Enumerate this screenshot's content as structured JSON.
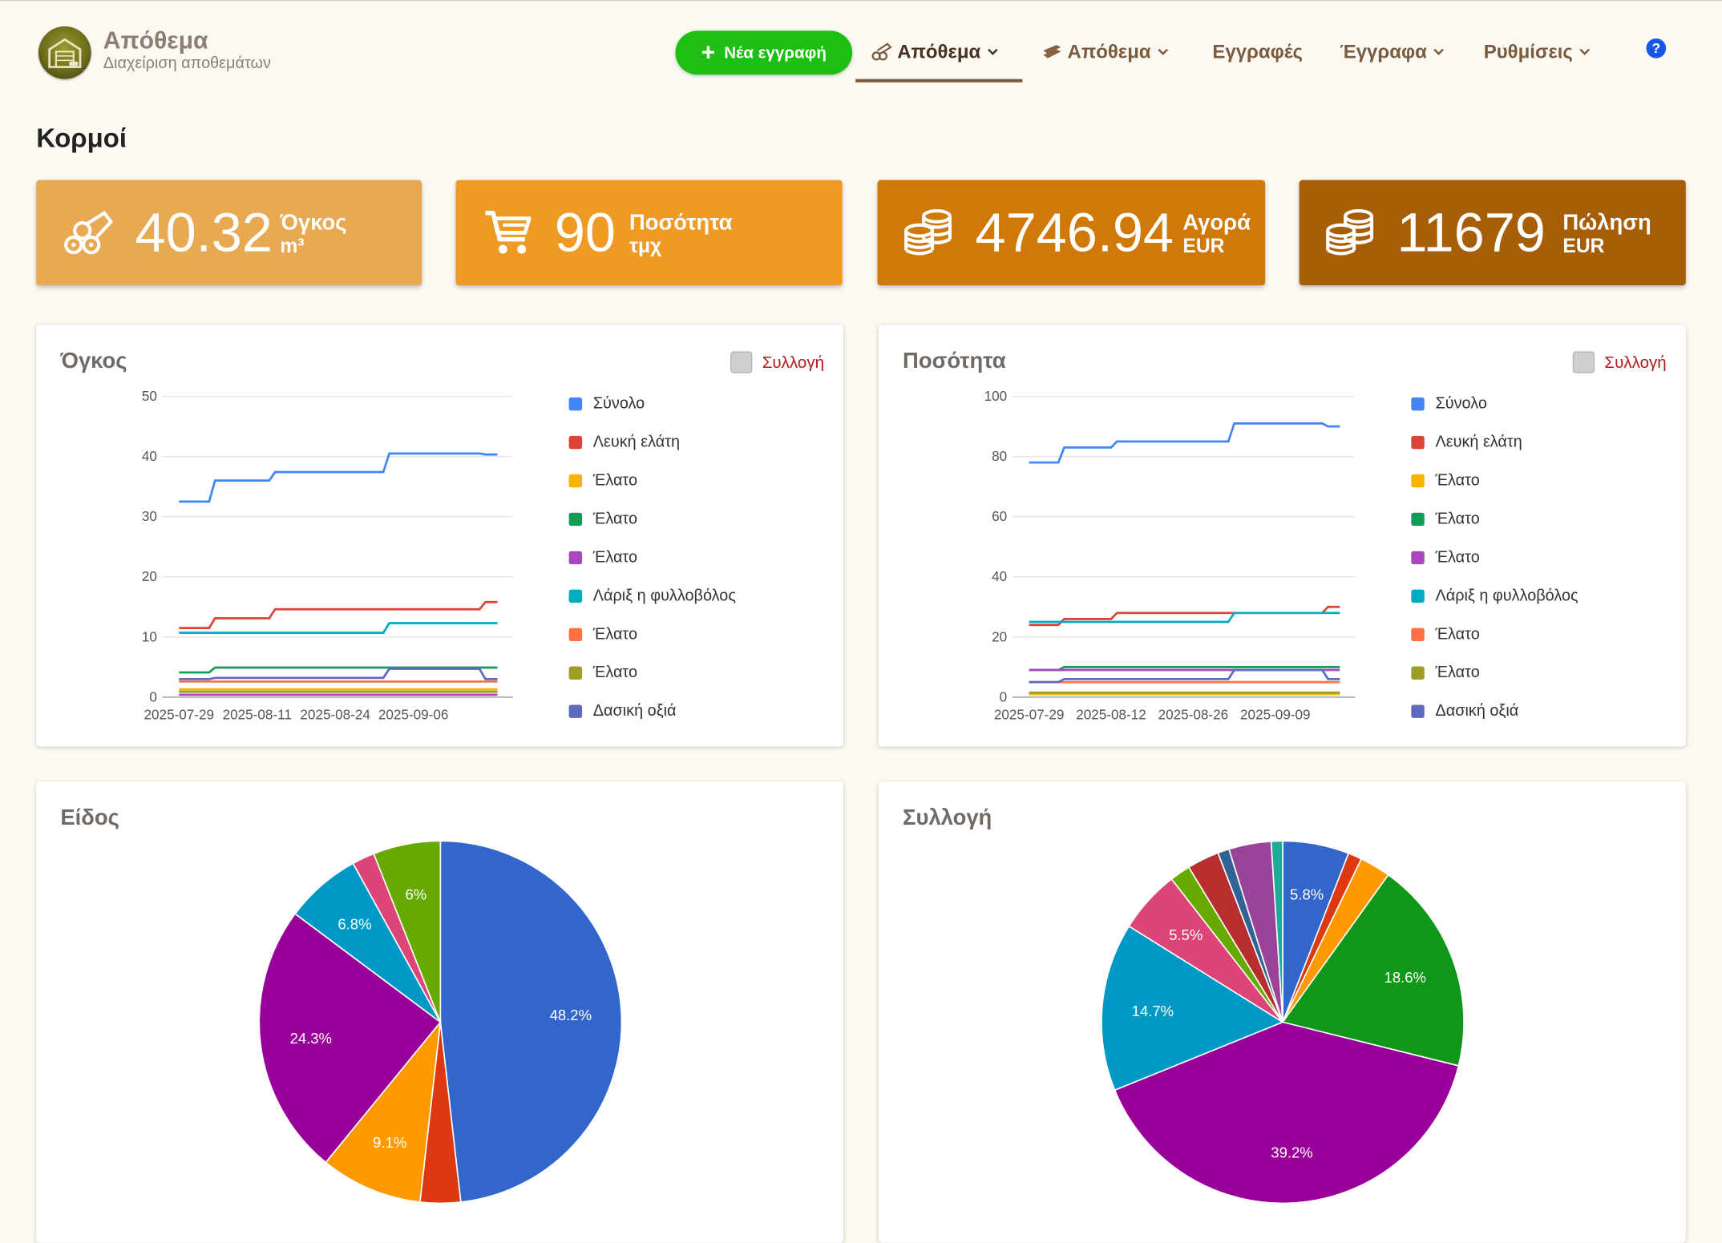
{
  "header": {
    "app_title": "Απόθεμα",
    "app_subtitle": "Διαχείριση αποθεμάτων",
    "new_entry_label": "Νέα εγγραφή",
    "nav": [
      "Απόθεμα",
      "Απόθεμα",
      "Εγγραφές",
      "Έγγραφα",
      "Ρυθμίσεις"
    ],
    "help_label": "?"
  },
  "page_title": "Κορμοί",
  "stats": [
    {
      "value": "40.32",
      "label": "Όγκος",
      "unit": "m³",
      "color": "#e8a952",
      "icon": "logs-icon"
    },
    {
      "value": "90",
      "label": "Ποσότητα",
      "unit": "τμχ",
      "color": "#ef9a25",
      "icon": "cart-icon"
    },
    {
      "value": "4746.94",
      "label": "Αγορά",
      "unit": "EUR",
      "color": "#d07808",
      "icon": "coins-icon"
    },
    {
      "value": "11679",
      "label": "Πώληση",
      "unit": "EUR",
      "color": "#a65f07",
      "icon": "coins-icon"
    }
  ],
  "collection_label": "Συλλογή",
  "legend_items": [
    "Σύνολο",
    "Λευκή ελάτη",
    "Έλατο",
    "Έλατο",
    "Έλατο",
    "Λάριξ η φυλλοβόλος",
    "Έλατο",
    "Έλατο",
    "Δασική οξιά"
  ],
  "legend_colors": [
    "#4285f4",
    "#db4437",
    "#f4b400",
    "#0f9d58",
    "#ab47bc",
    "#00acc1",
    "#ff7043",
    "#9e9d24",
    "#5c6bc0"
  ],
  "chart_data": [
    {
      "type": "line",
      "title": "Όγκος",
      "ylim": [
        0,
        50
      ],
      "yticks": [
        0,
        10,
        20,
        30,
        40,
        50
      ],
      "xtick_labels": [
        "2025-07-29",
        "2025-08-11",
        "2025-08-24",
        "2025-09-06"
      ],
      "x": [
        "2025-07-29",
        "2025-08-03",
        "2025-08-04",
        "2025-08-13",
        "2025-08-14",
        "2025-09-01",
        "2025-09-02",
        "2025-09-17",
        "2025-09-18",
        "2025-09-20"
      ],
      "series": [
        {
          "name": "Σύνολο",
          "values": [
            32.5,
            32.5,
            36.0,
            36.0,
            37.4,
            37.4,
            40.5,
            40.5,
            40.32,
            40.32
          ]
        },
        {
          "name": "Λευκή ελάτη",
          "values": [
            11.5,
            11.5,
            13.1,
            13.1,
            14.6,
            14.6,
            14.6,
            14.6,
            15.8,
            15.8
          ]
        },
        {
          "name": "Έλατο",
          "values": [
            1.3,
            1.3,
            1.3,
            1.3,
            1.3,
            1.3,
            1.3,
            1.3,
            1.3,
            1.3
          ]
        },
        {
          "name": "Έλατο",
          "values": [
            4.1,
            4.1,
            4.9,
            4.9,
            4.9,
            4.9,
            4.9,
            4.9,
            4.9,
            4.9
          ]
        },
        {
          "name": "Έλατο",
          "values": [
            0.4,
            0.4,
            0.4,
            0.4,
            0.4,
            0.4,
            0.4,
            0.4,
            0.4,
            0.4
          ]
        },
        {
          "name": "Λάριξ η φυλλοβόλος",
          "values": [
            10.7,
            10.7,
            10.7,
            10.7,
            10.7,
            10.7,
            12.3,
            12.3,
            12.3,
            12.3
          ]
        },
        {
          "name": "Έλατο",
          "values": [
            2.6,
            2.6,
            2.6,
            2.6,
            2.6,
            2.6,
            2.6,
            2.6,
            2.6,
            2.6
          ]
        },
        {
          "name": "Έλατο",
          "values": [
            0.9,
            0.9,
            0.9,
            0.9,
            0.9,
            0.9,
            0.9,
            0.9,
            0.9,
            0.9
          ]
        },
        {
          "name": "Δασική οξιά",
          "values": [
            3.0,
            3.0,
            3.2,
            3.2,
            3.2,
            3.2,
            4.7,
            4.7,
            3.0,
            3.0
          ]
        }
      ]
    },
    {
      "type": "line",
      "title": "Ποσότητα",
      "ylim": [
        0,
        100
      ],
      "yticks": [
        0,
        20,
        40,
        60,
        80,
        100
      ],
      "xtick_labels": [
        "2025-07-29",
        "2025-08-12",
        "2025-08-26",
        "2025-09-09"
      ],
      "x": [
        "2025-07-29",
        "2025-08-03",
        "2025-08-04",
        "2025-08-12",
        "2025-08-13",
        "2025-09-01",
        "2025-09-02",
        "2025-09-17",
        "2025-09-18",
        "2025-09-20"
      ],
      "series": [
        {
          "name": "Σύνολο",
          "values": [
            78,
            78,
            83,
            83,
            85,
            85,
            91,
            91,
            90,
            90
          ]
        },
        {
          "name": "Λευκή ελάτη",
          "values": [
            24,
            24,
            26,
            26,
            28,
            28,
            28,
            28,
            30,
            30
          ]
        },
        {
          "name": "Έλατο",
          "values": [
            1,
            1,
            1,
            1,
            1,
            1,
            1,
            1,
            1,
            1
          ]
        },
        {
          "name": "Έλατο",
          "values": [
            9,
            9,
            10,
            10,
            10,
            10,
            10,
            10,
            10,
            10
          ]
        },
        {
          "name": "Έλατο",
          "values": [
            9,
            9,
            9,
            9,
            9,
            9,
            9,
            9,
            9,
            9
          ]
        },
        {
          "name": "Λάριξ η φυλλοβόλος",
          "values": [
            25,
            25,
            25,
            25,
            25,
            25,
            28,
            28,
            28,
            28
          ]
        },
        {
          "name": "Έλατο",
          "values": [
            5,
            5,
            5,
            5,
            5,
            5,
            5,
            5,
            5,
            5
          ]
        },
        {
          "name": "Έλατο",
          "values": [
            1.5,
            1.5,
            1.5,
            1.5,
            1.5,
            1.5,
            1.5,
            1.5,
            1.5,
            1.5
          ]
        },
        {
          "name": "Δασική οξιά",
          "values": [
            5,
            5,
            6,
            6,
            6,
            6,
            9,
            9,
            6,
            6
          ]
        }
      ]
    },
    {
      "type": "pie",
      "title": "Είδος",
      "slices": [
        {
          "value": 48.2,
          "label": "48.2%",
          "color": "#3366cc"
        },
        {
          "value": 3.6,
          "label": "",
          "color": "#dc3912"
        },
        {
          "value": 9.1,
          "label": "9.1%",
          "color": "#ff9900"
        },
        {
          "value": 24.3,
          "label": "24.3%",
          "color": "#990099"
        },
        {
          "value": 6.8,
          "label": "6.8%",
          "color": "#0099c6"
        },
        {
          "value": 2.0,
          "label": "",
          "color": "#dd4477"
        },
        {
          "value": 6.0,
          "label": "6%",
          "color": "#66aa00"
        }
      ]
    },
    {
      "type": "pie",
      "title": "Συλλογή",
      "slices": [
        {
          "value": 5.8,
          "label": "5.8%",
          "color": "#3366cc"
        },
        {
          "value": 1.2,
          "label": "",
          "color": "#dc3912"
        },
        {
          "value": 2.7,
          "label": "",
          "color": "#ff9900"
        },
        {
          "value": 18.6,
          "label": "18.6%",
          "color": "#109618"
        },
        {
          "value": 39.2,
          "label": "39.2%",
          "color": "#990099"
        },
        {
          "value": 14.7,
          "label": "14.7%",
          "color": "#0099c6"
        },
        {
          "value": 5.5,
          "label": "5.5%",
          "color": "#dd4477"
        },
        {
          "value": 1.8,
          "label": "",
          "color": "#66aa00"
        },
        {
          "value": 2.8,
          "label": "",
          "color": "#b82e2e"
        },
        {
          "value": 1.0,
          "label": "",
          "color": "#316395"
        },
        {
          "value": 3.7,
          "label": "",
          "color": "#994499"
        },
        {
          "value": 1.0,
          "label": "",
          "color": "#22aa99"
        }
      ]
    }
  ]
}
